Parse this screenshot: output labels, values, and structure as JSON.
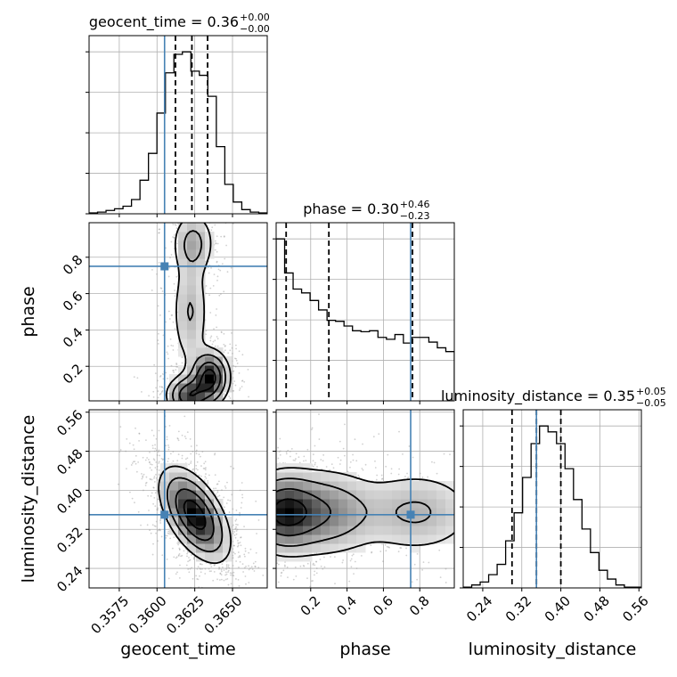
{
  "chart_data": {
    "type": "corner",
    "parameters": [
      "geocent_time",
      "phase",
      "luminosity_distance"
    ],
    "axis_labels": {
      "x": [
        "geocent_time",
        "phase",
        "luminosity_distance"
      ],
      "y": [
        "",
        "phase",
        "luminosity_distance"
      ]
    },
    "truths": {
      "geocent_time": 0.3605,
      "phase": 0.75,
      "luminosity_distance": 0.35
    },
    "colors": {
      "truth": "#4682b4",
      "contour": "#000000",
      "grid": "#b0b0b0"
    },
    "titles": [
      {
        "param": "geocent_time",
        "text": "geocent_time = 0.36",
        "plus": "+0.00",
        "minus": "−0.00"
      },
      {
        "param": "phase",
        "text": "phase = 0.30",
        "plus": "+0.46",
        "minus": "−0.23"
      },
      {
        "param": "luminosity_distance",
        "text": "luminosity_distance = 0.35",
        "plus": "+0.05",
        "minus": "−0.05"
      }
    ],
    "ranges": {
      "geocent_time": [
        0.3555,
        0.3673
      ],
      "phase": [
        0.01,
        0.99
      ],
      "luminosity_distance": [
        0.2,
        0.565
      ]
    },
    "ticks": {
      "geocent_time": {
        "values": [
          0.3575,
          0.36,
          0.3625,
          0.365
        ],
        "labels": [
          "0.3575",
          "0.3600",
          "0.3625",
          "0.3650"
        ]
      },
      "phase": {
        "values": [
          0.2,
          0.4,
          0.6,
          0.8
        ],
        "labels": [
          "0.2",
          "0.4",
          "0.6",
          "0.8"
        ]
      },
      "luminosity_distance": {
        "values": [
          0.24,
          0.32,
          0.4,
          0.48,
          0.56
        ],
        "labels": [
          "0.24",
          "0.32",
          "0.40",
          "0.48",
          "0.56"
        ]
      }
    },
    "histograms": {
      "geocent_time": {
        "quantiles": [
          0.36122,
          0.36231,
          0.36335
        ],
        "counts": [
          1,
          2,
          4,
          6,
          9,
          17,
          40,
          72,
          120,
          168,
          190,
          193,
          170,
          165,
          140,
          80,
          35,
          14,
          5,
          2,
          1
        ]
      },
      "phase": {
        "quantiles": [
          0.065,
          0.3,
          0.76
        ],
        "counts": [
          171,
          135,
          118,
          114,
          106,
          96,
          85,
          84,
          79,
          74,
          73,
          74,
          67,
          65,
          70,
          61,
          67,
          67,
          62,
          56,
          52
        ]
      },
      "luminosity_distance": {
        "quantiles": [
          0.3,
          0.35,
          0.4
        ],
        "counts": [
          1,
          4,
          8,
          18,
          32,
          64,
          102,
          150,
          196,
          220,
          212,
          196,
          162,
          120,
          80,
          48,
          24,
          12,
          4,
          1,
          1
        ]
      }
    },
    "joint": [
      {
        "x": "geocent_time",
        "y": "phase",
        "peaks": [
          {
            "x": 0.3635,
            "y": 0.14,
            "sx": 0.0007,
            "sy": 0.08,
            "w": 1.0
          },
          {
            "x": 0.3621,
            "y": 0.04,
            "sx": 0.0008,
            "sy": 0.06,
            "w": 0.8
          },
          {
            "x": 0.3622,
            "y": 0.5,
            "sx": 0.0007,
            "sy": 0.18,
            "w": 0.35
          },
          {
            "x": 0.3624,
            "y": 0.88,
            "sx": 0.0008,
            "sy": 0.1,
            "w": 0.4
          }
        ]
      },
      {
        "x": "geocent_time",
        "y": "luminosity_distance",
        "peaks": [
          {
            "x": 0.3625,
            "y": 0.35,
            "sx": 0.0012,
            "sy": 0.05,
            "w": 1.0,
            "rho": -0.55
          }
        ]
      },
      {
        "x": "phase",
        "y": "luminosity_distance",
        "peaks": [
          {
            "x": 0.05,
            "y": 0.355,
            "sx": 0.12,
            "sy": 0.045,
            "w": 1.0
          },
          {
            "x": 0.3,
            "y": 0.355,
            "sx": 0.15,
            "sy": 0.05,
            "w": 0.55
          },
          {
            "x": 0.78,
            "y": 0.355,
            "sx": 0.2,
            "sy": 0.05,
            "w": 0.4
          }
        ]
      }
    ]
  }
}
